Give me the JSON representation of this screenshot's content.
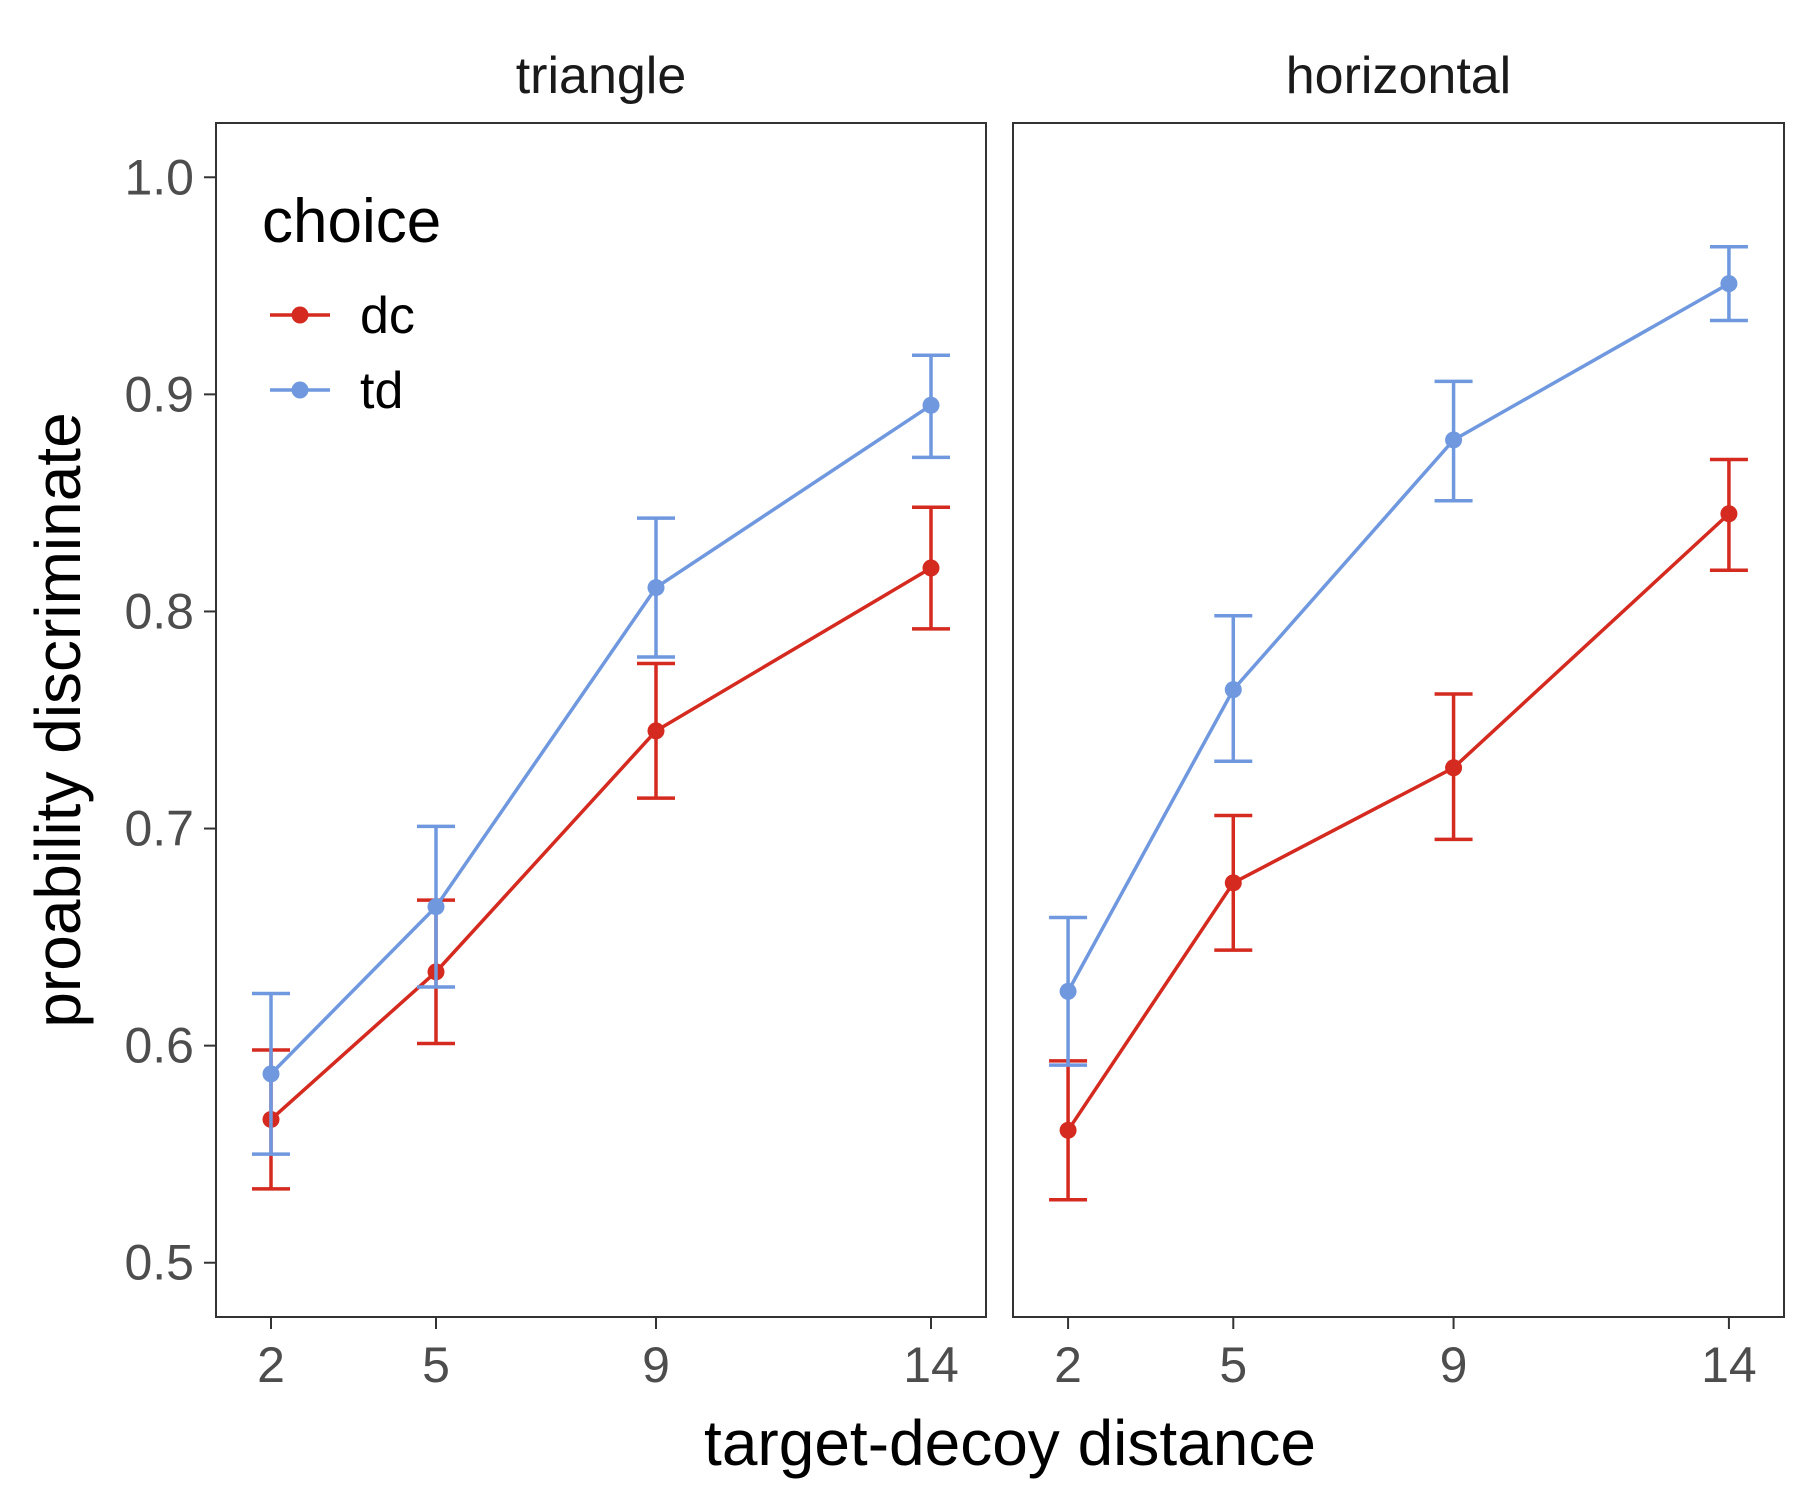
{
  "chart_data": {
    "type": "line",
    "xlabel": "target-decoy distance",
    "ylabel": "proability discriminate",
    "x": [
      2,
      5,
      9,
      14
    ],
    "x_ticks": [
      "2",
      "5",
      "9",
      "14"
    ],
    "xlim": [
      1,
      15
    ],
    "ylim": [
      0.475,
      1.025
    ],
    "y_ticks": [
      "0.5",
      "0.6",
      "0.7",
      "0.8",
      "0.9",
      "1.0"
    ],
    "y_tick_values": [
      0.5,
      0.6,
      0.7,
      0.8,
      0.9,
      1.0
    ],
    "grid": false,
    "legend": {
      "title": "choice",
      "position": "top-left-inside",
      "entries": [
        "dc",
        "td"
      ]
    },
    "series_colors": {
      "dc": "#d42a1f",
      "td": "#6f98df"
    },
    "facets": [
      {
        "title": "triangle",
        "series": [
          {
            "name": "dc",
            "values": [
              0.566,
              0.634,
              0.745,
              0.82
            ],
            "lower": [
              0.534,
              0.601,
              0.714,
              0.792
            ],
            "upper": [
              0.598,
              0.667,
              0.776,
              0.848
            ]
          },
          {
            "name": "td",
            "values": [
              0.587,
              0.664,
              0.811,
              0.895
            ],
            "lower": [
              0.55,
              0.627,
              0.779,
              0.871
            ],
            "upper": [
              0.624,
              0.701,
              0.843,
              0.918
            ]
          }
        ]
      },
      {
        "title": "horizontal",
        "series": [
          {
            "name": "dc",
            "values": [
              0.561,
              0.675,
              0.728,
              0.845
            ],
            "lower": [
              0.529,
              0.644,
              0.695,
              0.819
            ],
            "upper": [
              0.593,
              0.706,
              0.762,
              0.87
            ]
          },
          {
            "name": "td",
            "values": [
              0.625,
              0.764,
              0.879,
              0.951
            ],
            "lower": [
              0.591,
              0.731,
              0.851,
              0.934
            ],
            "upper": [
              0.659,
              0.798,
              0.906,
              0.968
            ]
          }
        ]
      }
    ]
  }
}
